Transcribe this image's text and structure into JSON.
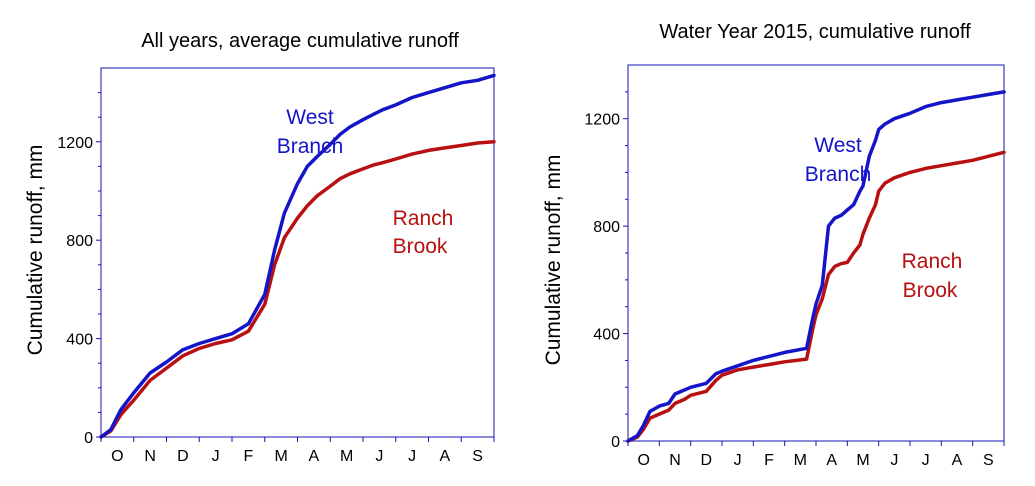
{
  "chart_data": [
    {
      "type": "line",
      "title": "All years, average cumulative runoff",
      "xlabel": "",
      "ylabel": "Cumulative runoff, mm",
      "ylim": [
        0,
        1500
      ],
      "yticks": [
        0,
        400,
        800,
        1200
      ],
      "months": [
        "O",
        "N",
        "D",
        "J",
        "F",
        "M",
        "A",
        "M",
        "J",
        "J",
        "A",
        "S"
      ],
      "x_unit": "month index (0 = start of October, 12 = end of September)",
      "series": [
        {
          "name": "West\nBranch",
          "label_lines": [
            "West",
            "Branch"
          ],
          "color": "#1414c8",
          "x": [
            0,
            0.3,
            0.6,
            1,
            1.5,
            2,
            2.5,
            3,
            3.5,
            4,
            4.5,
            5,
            5.3,
            5.6,
            6,
            6.3,
            6.6,
            7,
            7.3,
            7.6,
            8,
            8.3,
            8.6,
            9,
            9.5,
            10,
            10.5,
            11,
            11.5,
            12
          ],
          "y": [
            0,
            30,
            110,
            180,
            260,
            305,
            355,
            380,
            400,
            420,
            460,
            580,
            760,
            910,
            1030,
            1100,
            1140,
            1190,
            1230,
            1260,
            1290,
            1310,
            1330,
            1350,
            1380,
            1400,
            1420,
            1440,
            1450,
            1470
          ]
        },
        {
          "name": "Ranch\nBrook",
          "label_lines": [
            "Ranch",
            "Brook"
          ],
          "color": "#b81010",
          "x": [
            0,
            0.3,
            0.6,
            1,
            1.5,
            2,
            2.5,
            3,
            3.5,
            4,
            4.5,
            5,
            5.3,
            5.6,
            6,
            6.3,
            6.6,
            7,
            7.3,
            7.6,
            8,
            8.3,
            8.6,
            9,
            9.5,
            10,
            10.5,
            11,
            11.5,
            12
          ],
          "y": [
            0,
            25,
            90,
            150,
            230,
            280,
            330,
            360,
            380,
            395,
            430,
            540,
            700,
            810,
            890,
            940,
            980,
            1020,
            1050,
            1070,
            1090,
            1105,
            1115,
            1130,
            1150,
            1165,
            1175,
            1185,
            1195,
            1200
          ]
        }
      ],
      "annotations": [
        {
          "lines": [
            "West",
            "Branch"
          ],
          "color": "#1414c8",
          "anchor_series": "West\nBranch"
        },
        {
          "lines": [
            "Ranch",
            "Brook"
          ],
          "color": "#b81010",
          "anchor_series": "Ranch\nBrook"
        }
      ]
    },
    {
      "type": "line",
      "title": "Water Year 2015, cumulative runoff",
      "xlabel": "",
      "ylabel": "Cumulative runoff, mm",
      "ylim": [
        0,
        1400
      ],
      "yticks": [
        0,
        400,
        800,
        1200
      ],
      "months": [
        "O",
        "N",
        "D",
        "J",
        "F",
        "M",
        "A",
        "M",
        "J",
        "J",
        "A",
        "S"
      ],
      "x_unit": "month index (0 = start of October, 12 = end of September)",
      "series": [
        {
          "name": "West\nBranch",
          "label_lines": [
            "West",
            "Branch"
          ],
          "color": "#1414c8",
          "x": [
            0,
            0.3,
            0.5,
            0.7,
            1,
            1.3,
            1.5,
            1.8,
            2,
            2.5,
            2.8,
            3,
            3.5,
            4,
            4.5,
            5,
            5.7,
            5.9,
            6,
            6.2,
            6.4,
            6.6,
            6.8,
            7,
            7.2,
            7.4,
            7.5,
            7.7,
            7.9,
            8,
            8.2,
            8.5,
            9,
            9.5,
            10,
            10.5,
            11,
            11.5,
            12
          ],
          "y": [
            0,
            20,
            60,
            110,
            130,
            140,
            175,
            190,
            200,
            215,
            250,
            260,
            280,
            300,
            315,
            330,
            345,
            460,
            510,
            580,
            800,
            830,
            840,
            860,
            880,
            930,
            950,
            1060,
            1120,
            1160,
            1180,
            1200,
            1220,
            1245,
            1260,
            1270,
            1280,
            1290,
            1300
          ]
        },
        {
          "name": "Ranch\nBrook",
          "label_lines": [
            "Ranch",
            "Brook"
          ],
          "color": "#b81010",
          "x": [
            0,
            0.3,
            0.5,
            0.7,
            1,
            1.3,
            1.5,
            1.8,
            2,
            2.5,
            2.8,
            3,
            3.5,
            4,
            4.5,
            5,
            5.7,
            5.9,
            6,
            6.2,
            6.4,
            6.6,
            6.8,
            7,
            7.2,
            7.4,
            7.5,
            7.7,
            7.9,
            8,
            8.2,
            8.5,
            9,
            9.5,
            10,
            10.5,
            11,
            11.5,
            12
          ],
          "y": [
            0,
            15,
            45,
            85,
            100,
            115,
            140,
            155,
            170,
            185,
            225,
            245,
            265,
            275,
            285,
            295,
            305,
            420,
            470,
            530,
            620,
            650,
            660,
            665,
            700,
            730,
            770,
            830,
            880,
            930,
            960,
            980,
            1000,
            1015,
            1025,
            1035,
            1045,
            1060,
            1075
          ]
        }
      ],
      "annotations": [
        {
          "lines": [
            "West",
            "Branch"
          ],
          "color": "#1414c8",
          "anchor_series": "West\nBranch"
        },
        {
          "lines": [
            "Ranch",
            "Brook"
          ],
          "color": "#b81010",
          "anchor_series": "Ranch\nBrook"
        }
      ]
    }
  ]
}
